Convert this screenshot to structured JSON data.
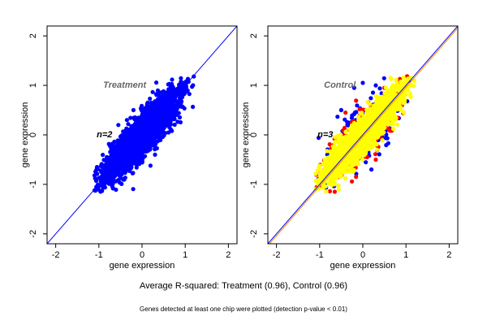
{
  "colors": {
    "treatment_points": "#0000ff",
    "control_base": "#ffff00",
    "control_red": "#ff0000",
    "control_blue": "#0000ff",
    "identity_line": "#0000ff",
    "fit_line": "#ff8c00",
    "panel_label": "#666666"
  },
  "chart_data": [
    {
      "type": "scatter",
      "title": "Treatment",
      "n_label": "n=2",
      "xlabel": "gene expression",
      "ylabel": "gene expression",
      "xlim": [
        -2.2,
        2.2
      ],
      "ylim": [
        -2.2,
        2.2
      ],
      "xticks": [
        -2,
        -1,
        0,
        1,
        2
      ],
      "yticks": [
        -2,
        -1,
        0,
        1,
        2
      ],
      "grid": false,
      "reference_lines": [
        {
          "kind": "identity",
          "slope": 1,
          "intercept": 0,
          "color": "#0000ff"
        }
      ],
      "point_cloud": {
        "shape": "elongated along y = x",
        "x_range": [
          -1.1,
          1.2
        ],
        "y_range": [
          -1.15,
          1.2
        ],
        "color": "#0000ff",
        "sample_points": [
          [
            -1.1,
            -1.12
          ],
          [
            -0.9,
            -0.85
          ],
          [
            -0.7,
            -0.6
          ],
          [
            -0.5,
            -0.35
          ],
          [
            -0.35,
            0.3
          ],
          [
            -0.3,
            -0.55
          ],
          [
            -0.1,
            0.05
          ],
          [
            0,
            -0.2
          ],
          [
            0.1,
            0.45
          ],
          [
            0.2,
            -0.1
          ],
          [
            0.3,
            0.55
          ],
          [
            0.4,
            0.15
          ],
          [
            0.5,
            0.8
          ],
          [
            0.6,
            0.4
          ],
          [
            0.8,
            0.9
          ],
          [
            1.0,
            1.05
          ],
          [
            1.2,
            1.18
          ],
          [
            -0.55,
            0.2
          ],
          [
            0.3,
            -0.4
          ],
          [
            -0.2,
            0.5
          ]
        ]
      }
    },
    {
      "type": "scatter",
      "title": "Control",
      "n_label": "n=3",
      "xlabel": "gene expression",
      "ylabel": "gene expression",
      "xlim": [
        -2.2,
        2.2
      ],
      "ylim": [
        -2.2,
        2.2
      ],
      "xticks": [
        -2,
        -1,
        0,
        1,
        2
      ],
      "yticks": [
        -2,
        -1,
        0,
        1,
        2
      ],
      "grid": false,
      "reference_lines": [
        {
          "kind": "identity",
          "slope": 1,
          "intercept": 0,
          "color": "#0000ff"
        },
        {
          "kind": "fit",
          "slope": 1.0,
          "intercept": -0.04,
          "color": "#ff8c00"
        }
      ],
      "point_cloud": {
        "shape": "elongated along y = x",
        "x_range": [
          -1.1,
          1.2
        ],
        "y_range": [
          -1.15,
          1.2
        ],
        "layers": [
          {
            "color": "#0000ff",
            "sample_points": [
              [
                -0.2,
                0.95
              ],
              [
                0.0,
                1.05
              ],
              [
                0.3,
                1.0
              ],
              [
                -0.9,
                -1.0
              ],
              [
                0.2,
                -0.7
              ],
              [
                -0.5,
                0.5
              ],
              [
                0.6,
                0.3
              ]
            ]
          },
          {
            "color": "#ff0000",
            "sample_points": [
              [
                0.5,
                0.95
              ],
              [
                0.3,
                -0.5
              ],
              [
                -0.4,
                0.45
              ],
              [
                0.1,
                -0.45
              ]
            ]
          },
          {
            "color": "#ffff00",
            "sample_points": [
              [
                -1.1,
                -1.1
              ],
              [
                -0.7,
                -0.6
              ],
              [
                -0.3,
                -0.1
              ],
              [
                0.0,
                0.0
              ],
              [
                0.3,
                0.3
              ],
              [
                0.7,
                0.75
              ],
              [
                1.1,
                1.15
              ]
            ]
          }
        ]
      }
    }
  ],
  "captions": {
    "main": "Average R-squared: Treatment (0.96), Control (0.96)",
    "footnote": "Genes detected at least one chip were plotted (detection p-value < 0.01)"
  }
}
